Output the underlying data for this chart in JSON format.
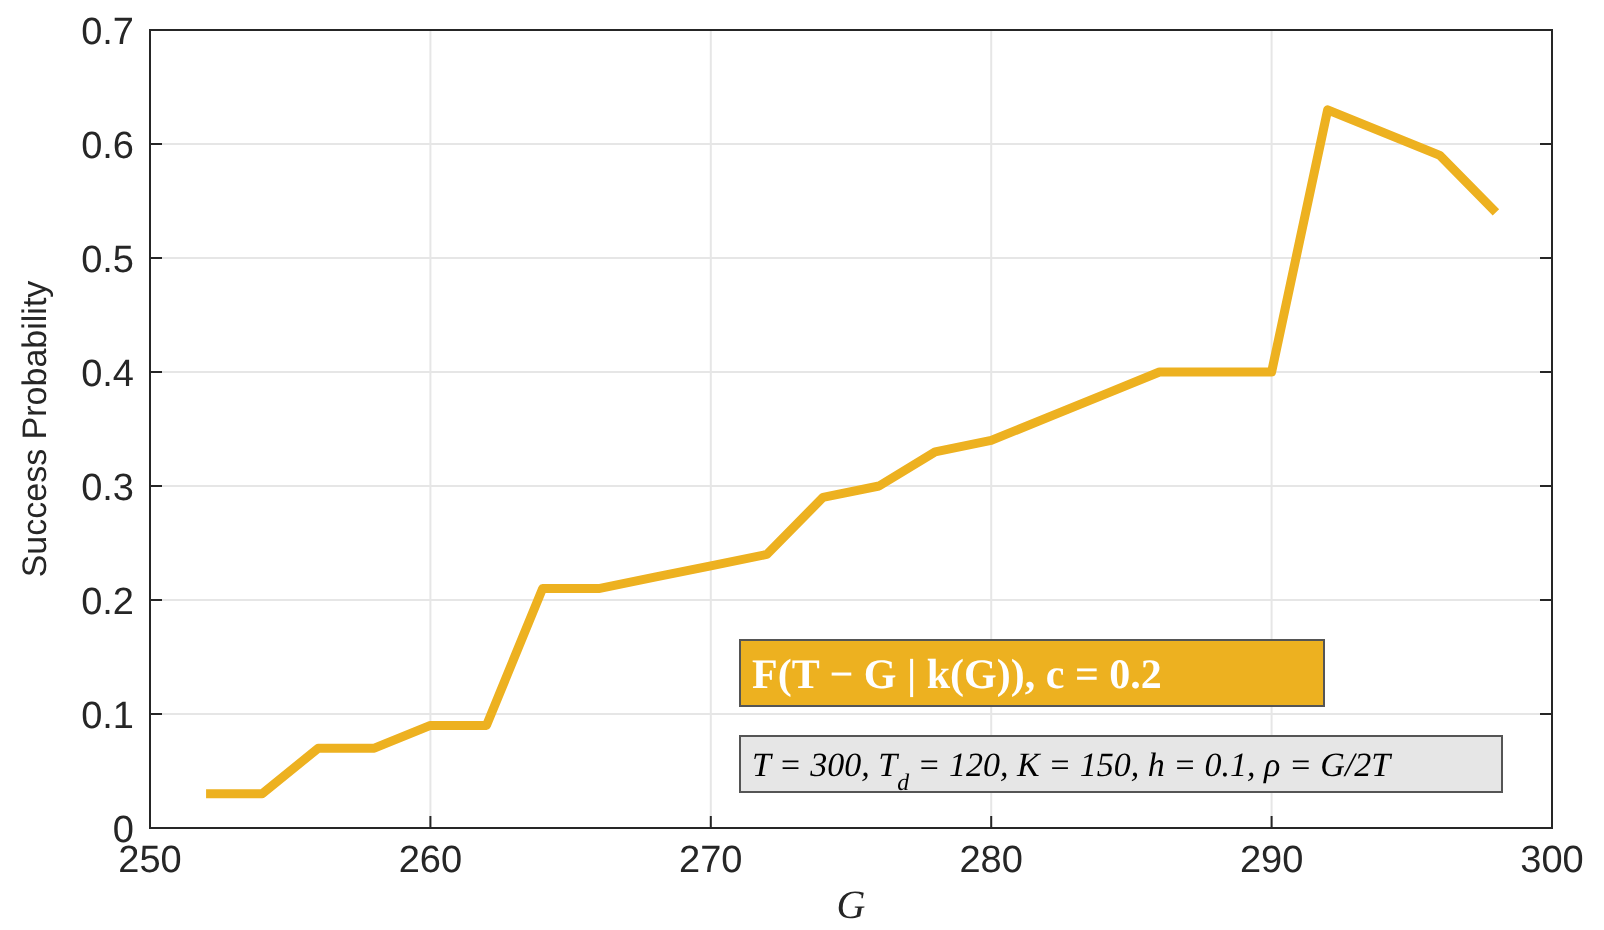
{
  "chart_data": {
    "type": "line",
    "xlabel": "G",
    "ylabel": "Success Probability",
    "x": [
      252,
      254,
      256,
      258,
      260,
      262,
      264,
      266,
      268,
      270,
      272,
      274,
      276,
      278,
      280,
      282,
      284,
      286,
      288,
      290,
      292,
      294,
      296,
      298
    ],
    "series": [
      {
        "color": "#edb120",
        "values": [
          0.03,
          0.03,
          0.07,
          0.07,
          0.09,
          0.09,
          0.21,
          0.21,
          0.22,
          0.23,
          0.24,
          0.29,
          0.3,
          0.33,
          0.34,
          0.36,
          0.38,
          0.4,
          0.4,
          0.4,
          0.63,
          0.61,
          0.59,
          0.54
        ]
      }
    ],
    "xlim": [
      250,
      300
    ],
    "xticks": [
      250,
      260,
      270,
      280,
      290,
      300
    ],
    "ylim": [
      0,
      0.7
    ],
    "yticks": [
      0,
      0.1,
      0.2,
      0.3,
      0.4,
      0.5,
      0.6,
      0.7
    ],
    "grid": true,
    "marker": "none",
    "line_style": "solid",
    "annotations": [
      "F(T − G | k(G)), c = 0.2",
      "T = 300, T$_{d}$ = 120, K = 150, h = 0.1, ρ = G/2T"
    ]
  }
}
